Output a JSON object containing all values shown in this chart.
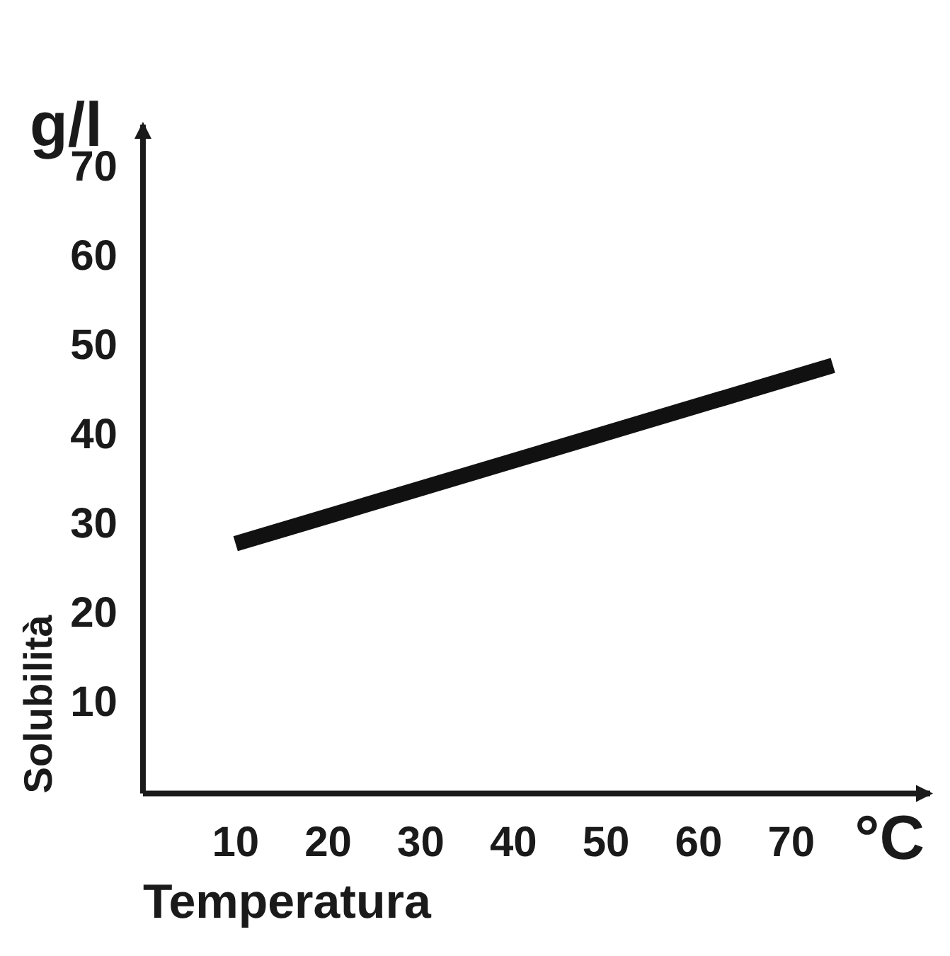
{
  "chart_data": {
    "type": "line",
    "xlabel": "Temperatura",
    "ylabel": "Solubilità",
    "annotations": [
      "g/l",
      "°C"
    ],
    "x": [
      10,
      74.5
    ],
    "series": [
      {
        "color": "#111111",
        "values": [
          28,
          48
        ]
      }
    ],
    "xlim": [
      0,
      85
    ],
    "xticks": [
      10,
      20,
      30,
      40,
      50,
      60,
      70
    ],
    "ylim": [
      0,
      75
    ],
    "yticks": [
      10,
      20,
      30,
      40,
      50,
      60,
      70
    ],
    "grid": false,
    "legend": false,
    "marker": "none",
    "line_style": "solid"
  }
}
